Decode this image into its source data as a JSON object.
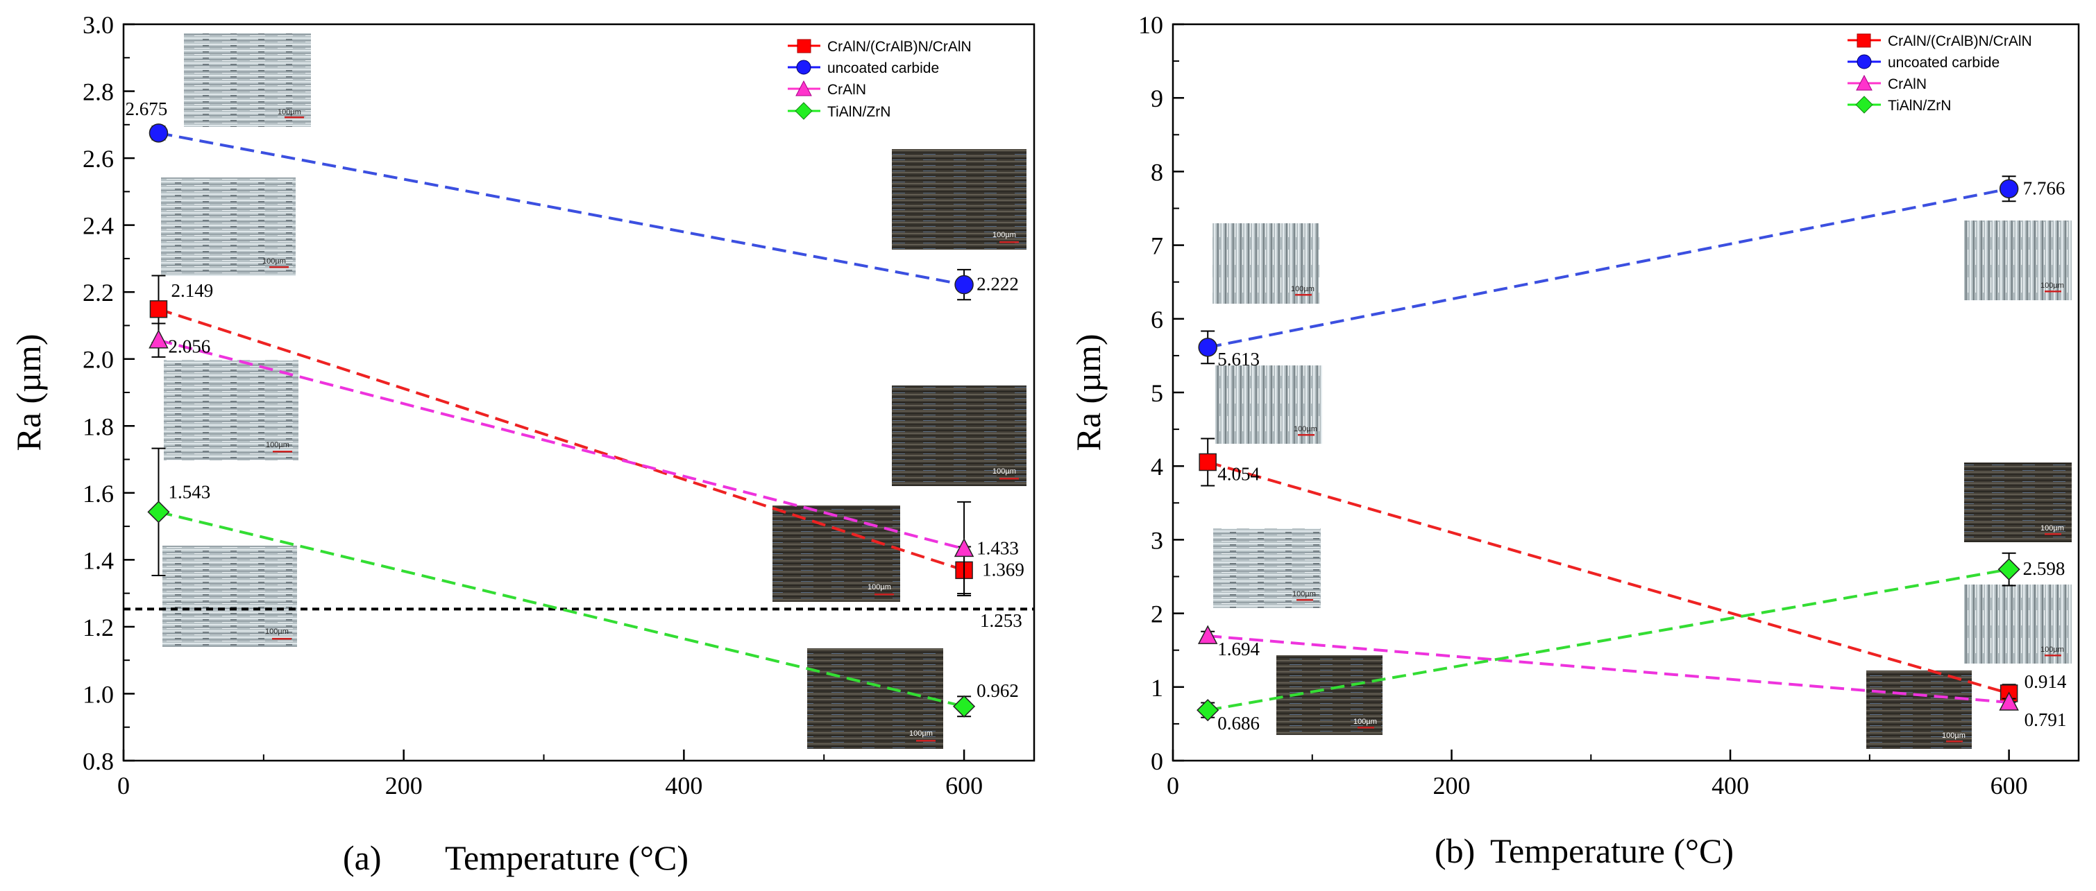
{
  "figure": {
    "scale_bar_label": "100µm"
  },
  "chart_data": [
    {
      "type": "line",
      "panel_label": "(a)",
      "xlabel": "Temperature (°C)",
      "ylabel": "Ra (µm)",
      "xlim": [
        0,
        650
      ],
      "ylim": [
        0.8,
        3.0
      ],
      "xticks": [
        0,
        200,
        400,
        600
      ],
      "yticks": [
        0.8,
        1.0,
        1.2,
        1.4,
        1.6,
        1.8,
        2.0,
        2.2,
        2.4,
        2.6,
        2.8,
        3.0
      ],
      "ytick_labels": [
        "0.8",
        "1.0",
        "1.2",
        "1.4",
        "1.6",
        "1.8",
        "2.0",
        "2.2",
        "2.4",
        "2.6",
        "2.8",
        "3.0"
      ],
      "legend_position": "top-right",
      "series": [
        {
          "name": "CrAlN/(CrAlB)N/CrAlN",
          "marker": "square",
          "color": "#ff0000",
          "line_color": "#ee2222",
          "x": [
            25,
            600
          ],
          "values": [
            2.149,
            1.369
          ],
          "errors": [
            0.1,
            0.07
          ],
          "labels": [
            "2.149",
            "1.369"
          ]
        },
        {
          "name": "uncoated carbide",
          "marker": "circle",
          "color": "#1a1aff",
          "line_color": "#3b4fe0",
          "x": [
            25,
            600
          ],
          "values": [
            2.675,
            2.222
          ],
          "errors": [
            0.02,
            0.045
          ],
          "labels": [
            "2.675",
            "2.222"
          ]
        },
        {
          "name": "CrAlN",
          "marker": "triangle",
          "color": "#ff33cc",
          "line_color": "#ee33dd",
          "x": [
            25,
            600
          ],
          "values": [
            2.056,
            1.433
          ],
          "errors": [
            0.05,
            0.14
          ],
          "labels": [
            "2.056",
            "1.433"
          ]
        },
        {
          "name": "TiAlN/ZrN",
          "marker": "diamond",
          "color": "#22ee22",
          "line_color": "#33dd33",
          "x": [
            25,
            600
          ],
          "values": [
            1.543,
            0.962
          ],
          "errors": [
            0.19,
            0.03
          ],
          "labels": [
            "1.543",
            "0.962"
          ]
        }
      ],
      "reference_line": {
        "y": 1.253,
        "label": "1.253"
      }
    },
    {
      "type": "line",
      "panel_label": "(b)",
      "xlabel": "Temperature (°C)",
      "ylabel": "Ra (µm)",
      "xlim": [
        0,
        650
      ],
      "ylim": [
        0,
        10
      ],
      "xticks": [
        0,
        200,
        400,
        600
      ],
      "yticks": [
        0,
        1,
        2,
        3,
        4,
        5,
        6,
        7,
        8,
        9,
        10
      ],
      "ytick_labels": [
        "0",
        "1",
        "2",
        "3",
        "4",
        "5",
        "6",
        "7",
        "8",
        "9",
        "10"
      ],
      "legend_position": "top-right",
      "series": [
        {
          "name": "CrAlN/(CrAlB)N/CrAlN",
          "marker": "square",
          "color": "#ff0000",
          "line_color": "#ee2222",
          "x": [
            25,
            600
          ],
          "values": [
            4.054,
            0.914
          ],
          "errors": [
            0.32,
            0.12
          ],
          "labels": [
            "4.054",
            "0.914"
          ]
        },
        {
          "name": "uncoated carbide",
          "marker": "circle",
          "color": "#1a1aff",
          "line_color": "#3b4fe0",
          "x": [
            25,
            600
          ],
          "values": [
            5.613,
            7.766
          ],
          "errors": [
            0.22,
            0.17
          ],
          "labels": [
            "5.613",
            "7.766"
          ]
        },
        {
          "name": "CrAlN",
          "marker": "triangle",
          "color": "#ff33cc",
          "line_color": "#ee33dd",
          "x": [
            25,
            600
          ],
          "values": [
            1.694,
            0.791
          ],
          "errors": [
            0.06,
            0.05
          ],
          "labels": [
            "1.694",
            "0.791"
          ]
        },
        {
          "name": "TiAlN/ZrN",
          "marker": "diamond",
          "color": "#22ee22",
          "line_color": "#33dd33",
          "x": [
            25,
            600
          ],
          "values": [
            0.686,
            2.598
          ],
          "errors": [
            0.1,
            0.22
          ],
          "labels": [
            "0.686",
            "2.598"
          ]
        }
      ]
    }
  ]
}
